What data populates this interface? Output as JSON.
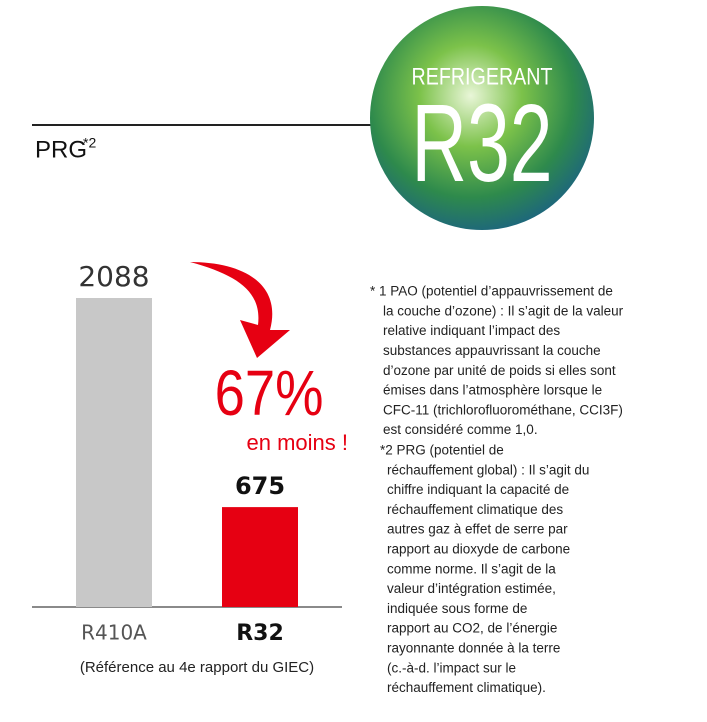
{
  "chart_data": {
    "type": "bar",
    "title": "PRG",
    "title_superscript": "*2",
    "categories": [
      "R410A",
      "R32"
    ],
    "values": [
      2088,
      675
    ],
    "colors": [
      "#c8c8c8",
      "#e60012"
    ],
    "reduction": "67%",
    "reduction_note": "en moins !",
    "reference": "(Référence au 4e rapport du GIEC)"
  },
  "logo": {
    "top": "REFRIGERANT",
    "main": "R32"
  },
  "footnotes": [
    [
      "* 1 PAO (potentiel d’appauvrissement de",
      "la couche d’ozone) : Il s’agit de la valeur",
      "relative indiquant l’impact des",
      "substances appauvrissant la couche",
      "d’ozone par unité de poids si elles sont",
      "émises dans l’atmosphère lorsque le",
      "CFC-11 (trichlorofluorométhane, CCI3F)",
      "est considéré comme 1,0."
    ],
    [
      "*2 PRG (potentiel de",
      "réchauffement global) : Il s’agit du",
      "chiffre indiquant la capacité de",
      "réchauffement climatique des",
      "autres gaz à effet de serre par",
      "rapport au dioxyde de carbone",
      "comme norme. Il s’agit de la",
      "valeur d’intégration estimée,",
      "indiquée sous forme de",
      "rapport au CO2, de l’énergie",
      "rayonnante donnée à la terre",
      "(c.-à-d. l’impact sur le",
      "réchauffement climatique)."
    ]
  ]
}
